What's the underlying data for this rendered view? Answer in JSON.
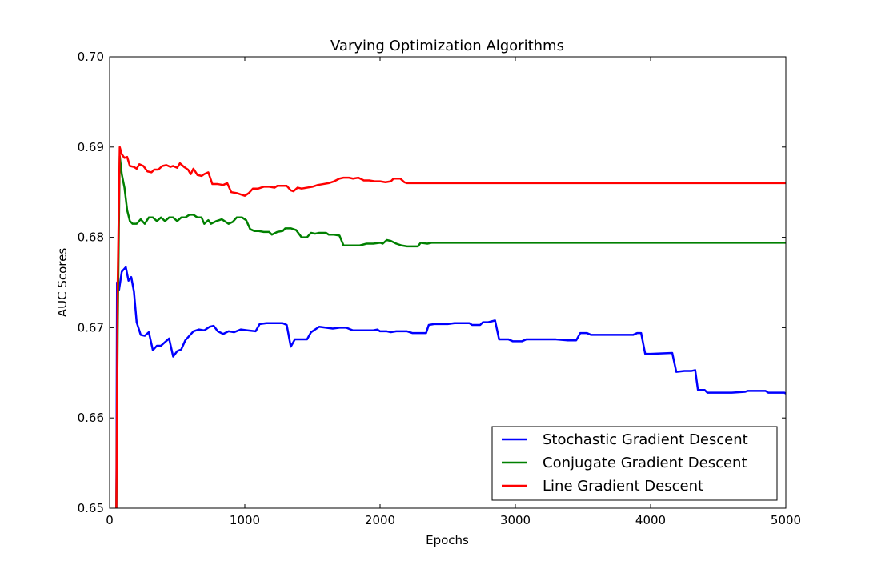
{
  "chart_data": {
    "type": "line",
    "title": "Varying Optimization Algorithms",
    "xlabel": "Epochs",
    "ylabel": "AUC Scores",
    "xlim": [
      0,
      5000
    ],
    "ylim": [
      0.65,
      0.7
    ],
    "xticks": [
      0,
      1000,
      2000,
      3000,
      4000,
      5000
    ],
    "xtick_labels": [
      "0",
      "1000",
      "2000",
      "3000",
      "4000",
      "5000"
    ],
    "yticks": [
      0.65,
      0.66,
      0.67,
      0.68,
      0.69,
      0.7
    ],
    "ytick_labels": [
      "0.65",
      "0.66",
      "0.67",
      "0.68",
      "0.69",
      "0.70"
    ],
    "grid": false,
    "legend_position": "lower-right",
    "series": [
      {
        "name": "Stochastic Gradient Descent",
        "color": "#0000ff",
        "points": [
          [
            50,
            0.65
          ],
          [
            55,
            0.675
          ],
          [
            70,
            0.6742
          ],
          [
            90,
            0.6762
          ],
          [
            120,
            0.6767
          ],
          [
            140,
            0.6752
          ],
          [
            160,
            0.6756
          ],
          [
            180,
            0.674
          ],
          [
            200,
            0.6706
          ],
          [
            230,
            0.6692
          ],
          [
            260,
            0.6691
          ],
          [
            290,
            0.6695
          ],
          [
            320,
            0.6675
          ],
          [
            350,
            0.668
          ],
          [
            380,
            0.668
          ],
          [
            410,
            0.6684
          ],
          [
            440,
            0.6688
          ],
          [
            470,
            0.6668
          ],
          [
            500,
            0.6674
          ],
          [
            530,
            0.6676
          ],
          [
            560,
            0.6686
          ],
          [
            590,
            0.6691
          ],
          [
            620,
            0.6696
          ],
          [
            660,
            0.6698
          ],
          [
            700,
            0.6697
          ],
          [
            740,
            0.6701
          ],
          [
            770,
            0.6702
          ],
          [
            800,
            0.6696
          ],
          [
            840,
            0.6693
          ],
          [
            880,
            0.6696
          ],
          [
            920,
            0.6695
          ],
          [
            970,
            0.6698
          ],
          [
            1020,
            0.6697
          ],
          [
            1080,
            0.6696
          ],
          [
            1110,
            0.6704
          ],
          [
            1160,
            0.6705
          ],
          [
            1220,
            0.6705
          ],
          [
            1280,
            0.6705
          ],
          [
            1310,
            0.6703
          ],
          [
            1340,
            0.6679
          ],
          [
            1370,
            0.6687
          ],
          [
            1400,
            0.6687
          ],
          [
            1460,
            0.6687
          ],
          [
            1490,
            0.6695
          ],
          [
            1550,
            0.6701
          ],
          [
            1600,
            0.67
          ],
          [
            1650,
            0.6699
          ],
          [
            1700,
            0.67
          ],
          [
            1750,
            0.67
          ],
          [
            1800,
            0.6697
          ],
          [
            1850,
            0.6697
          ],
          [
            1900,
            0.6697
          ],
          [
            1950,
            0.6697
          ],
          [
            1980,
            0.6698
          ],
          [
            2000,
            0.6696
          ],
          [
            2050,
            0.6696
          ],
          [
            2080,
            0.6695
          ],
          [
            2120,
            0.6696
          ],
          [
            2160,
            0.6696
          ],
          [
            2200,
            0.6696
          ],
          [
            2240,
            0.6694
          ],
          [
            2280,
            0.6694
          ],
          [
            2340,
            0.6694
          ],
          [
            2360,
            0.6703
          ],
          [
            2400,
            0.6704
          ],
          [
            2450,
            0.6704
          ],
          [
            2500,
            0.6704
          ],
          [
            2550,
            0.6705
          ],
          [
            2600,
            0.6705
          ],
          [
            2660,
            0.6705
          ],
          [
            2680,
            0.6703
          ],
          [
            2740,
            0.6703
          ],
          [
            2760,
            0.6706
          ],
          [
            2800,
            0.6706
          ],
          [
            2850,
            0.6708
          ],
          [
            2880,
            0.6687
          ],
          [
            2950,
            0.6687
          ],
          [
            2980,
            0.6685
          ],
          [
            3050,
            0.6685
          ],
          [
            3080,
            0.6687
          ],
          [
            3150,
            0.6687
          ],
          [
            3200,
            0.6687
          ],
          [
            3300,
            0.6687
          ],
          [
            3380,
            0.6686
          ],
          [
            3450,
            0.6686
          ],
          [
            3480,
            0.6694
          ],
          [
            3530,
            0.6694
          ],
          [
            3560,
            0.6692
          ],
          [
            3700,
            0.6692
          ],
          [
            3870,
            0.6692
          ],
          [
            3900,
            0.6694
          ],
          [
            3930,
            0.6694
          ],
          [
            3960,
            0.6671
          ],
          [
            4000,
            0.6671
          ],
          [
            4160,
            0.6672
          ],
          [
            4190,
            0.6651
          ],
          [
            4250,
            0.6652
          ],
          [
            4300,
            0.6652
          ],
          [
            4330,
            0.6653
          ],
          [
            4350,
            0.6631
          ],
          [
            4400,
            0.6631
          ],
          [
            4420,
            0.6628
          ],
          [
            4600,
            0.6628
          ],
          [
            4700,
            0.6629
          ],
          [
            4720,
            0.663
          ],
          [
            4850,
            0.663
          ],
          [
            4870,
            0.6628
          ],
          [
            4990,
            0.6628
          ],
          [
            5000,
            0.6627
          ]
        ]
      },
      {
        "name": "Conjugate Gradient Descent",
        "color": "#008000",
        "points": [
          [
            50,
            0.65
          ],
          [
            60,
            0.67
          ],
          [
            75,
            0.689
          ],
          [
            90,
            0.687
          ],
          [
            110,
            0.6855
          ],
          [
            130,
            0.683
          ],
          [
            150,
            0.6818
          ],
          [
            170,
            0.6815
          ],
          [
            200,
            0.6815
          ],
          [
            230,
            0.682
          ],
          [
            260,
            0.6815
          ],
          [
            290,
            0.6822
          ],
          [
            320,
            0.6822
          ],
          [
            350,
            0.6818
          ],
          [
            380,
            0.6822
          ],
          [
            410,
            0.6818
          ],
          [
            440,
            0.6822
          ],
          [
            470,
            0.6822
          ],
          [
            500,
            0.6818
          ],
          [
            530,
            0.6822
          ],
          [
            560,
            0.6822
          ],
          [
            590,
            0.6825
          ],
          [
            620,
            0.6825
          ],
          [
            650,
            0.6822
          ],
          [
            680,
            0.6822
          ],
          [
            700,
            0.6815
          ],
          [
            730,
            0.6819
          ],
          [
            750,
            0.6815
          ],
          [
            790,
            0.6818
          ],
          [
            830,
            0.682
          ],
          [
            880,
            0.6815
          ],
          [
            910,
            0.6817
          ],
          [
            940,
            0.6822
          ],
          [
            980,
            0.6822
          ],
          [
            1010,
            0.6819
          ],
          [
            1040,
            0.6809
          ],
          [
            1070,
            0.6807
          ],
          [
            1100,
            0.6807
          ],
          [
            1140,
            0.6806
          ],
          [
            1180,
            0.6806
          ],
          [
            1200,
            0.6803
          ],
          [
            1240,
            0.6806
          ],
          [
            1280,
            0.6807
          ],
          [
            1300,
            0.681
          ],
          [
            1340,
            0.681
          ],
          [
            1380,
            0.6808
          ],
          [
            1420,
            0.68
          ],
          [
            1460,
            0.68
          ],
          [
            1490,
            0.6805
          ],
          [
            1520,
            0.6804
          ],
          [
            1550,
            0.6805
          ],
          [
            1600,
            0.6805
          ],
          [
            1620,
            0.6803
          ],
          [
            1660,
            0.6803
          ],
          [
            1700,
            0.6802
          ],
          [
            1730,
            0.6791
          ],
          [
            1800,
            0.6791
          ],
          [
            1850,
            0.6791
          ],
          [
            1900,
            0.6793
          ],
          [
            1950,
            0.6793
          ],
          [
            2000,
            0.6794
          ],
          [
            2020,
            0.6793
          ],
          [
            2050,
            0.6797
          ],
          [
            2080,
            0.6796
          ],
          [
            2120,
            0.6793
          ],
          [
            2160,
            0.6791
          ],
          [
            2200,
            0.679
          ],
          [
            2250,
            0.679
          ],
          [
            2280,
            0.679
          ],
          [
            2300,
            0.6794
          ],
          [
            2350,
            0.6793
          ],
          [
            2380,
            0.6794
          ],
          [
            2500,
            0.6794
          ],
          [
            3000,
            0.6794
          ],
          [
            4000,
            0.6794
          ],
          [
            5000,
            0.6794
          ]
        ]
      },
      {
        "name": "Line Gradient Descent",
        "color": "#ff0000",
        "points": [
          [
            50,
            0.65
          ],
          [
            60,
            0.675
          ],
          [
            75,
            0.69
          ],
          [
            90,
            0.6892
          ],
          [
            110,
            0.6888
          ],
          [
            130,
            0.6889
          ],
          [
            150,
            0.6879
          ],
          [
            180,
            0.6878
          ],
          [
            200,
            0.6876
          ],
          [
            220,
            0.6881
          ],
          [
            250,
            0.6879
          ],
          [
            280,
            0.6873
          ],
          [
            310,
            0.6872
          ],
          [
            330,
            0.6875
          ],
          [
            360,
            0.6875
          ],
          [
            390,
            0.6879
          ],
          [
            420,
            0.688
          ],
          [
            450,
            0.6878
          ],
          [
            470,
            0.6879
          ],
          [
            500,
            0.6877
          ],
          [
            520,
            0.6882
          ],
          [
            550,
            0.6878
          ],
          [
            580,
            0.6875
          ],
          [
            600,
            0.687
          ],
          [
            620,
            0.6876
          ],
          [
            650,
            0.6869
          ],
          [
            680,
            0.6868
          ],
          [
            700,
            0.687
          ],
          [
            730,
            0.6872
          ],
          [
            760,
            0.6859
          ],
          [
            800,
            0.6859
          ],
          [
            840,
            0.6858
          ],
          [
            870,
            0.686
          ],
          [
            900,
            0.685
          ],
          [
            940,
            0.6849
          ],
          [
            980,
            0.6847
          ],
          [
            1000,
            0.6846
          ],
          [
            1030,
            0.6849
          ],
          [
            1060,
            0.6854
          ],
          [
            1100,
            0.6854
          ],
          [
            1140,
            0.6856
          ],
          [
            1180,
            0.6856
          ],
          [
            1220,
            0.6855
          ],
          [
            1240,
            0.6857
          ],
          [
            1280,
            0.6857
          ],
          [
            1310,
            0.6857
          ],
          [
            1340,
            0.6852
          ],
          [
            1360,
            0.6851
          ],
          [
            1390,
            0.6855
          ],
          [
            1420,
            0.6854
          ],
          [
            1460,
            0.6855
          ],
          [
            1500,
            0.6856
          ],
          [
            1540,
            0.6858
          ],
          [
            1580,
            0.6859
          ],
          [
            1620,
            0.686
          ],
          [
            1660,
            0.6862
          ],
          [
            1700,
            0.6865
          ],
          [
            1730,
            0.6866
          ],
          [
            1770,
            0.6866
          ],
          [
            1800,
            0.6865
          ],
          [
            1840,
            0.6866
          ],
          [
            1880,
            0.6863
          ],
          [
            1920,
            0.6863
          ],
          [
            1960,
            0.6862
          ],
          [
            2000,
            0.6862
          ],
          [
            2040,
            0.6861
          ],
          [
            2080,
            0.6862
          ],
          [
            2100,
            0.6865
          ],
          [
            2150,
            0.6865
          ],
          [
            2180,
            0.6861
          ],
          [
            2200,
            0.686
          ],
          [
            2300,
            0.686
          ],
          [
            3000,
            0.686
          ],
          [
            4000,
            0.686
          ],
          [
            5000,
            0.686
          ]
        ]
      }
    ]
  }
}
